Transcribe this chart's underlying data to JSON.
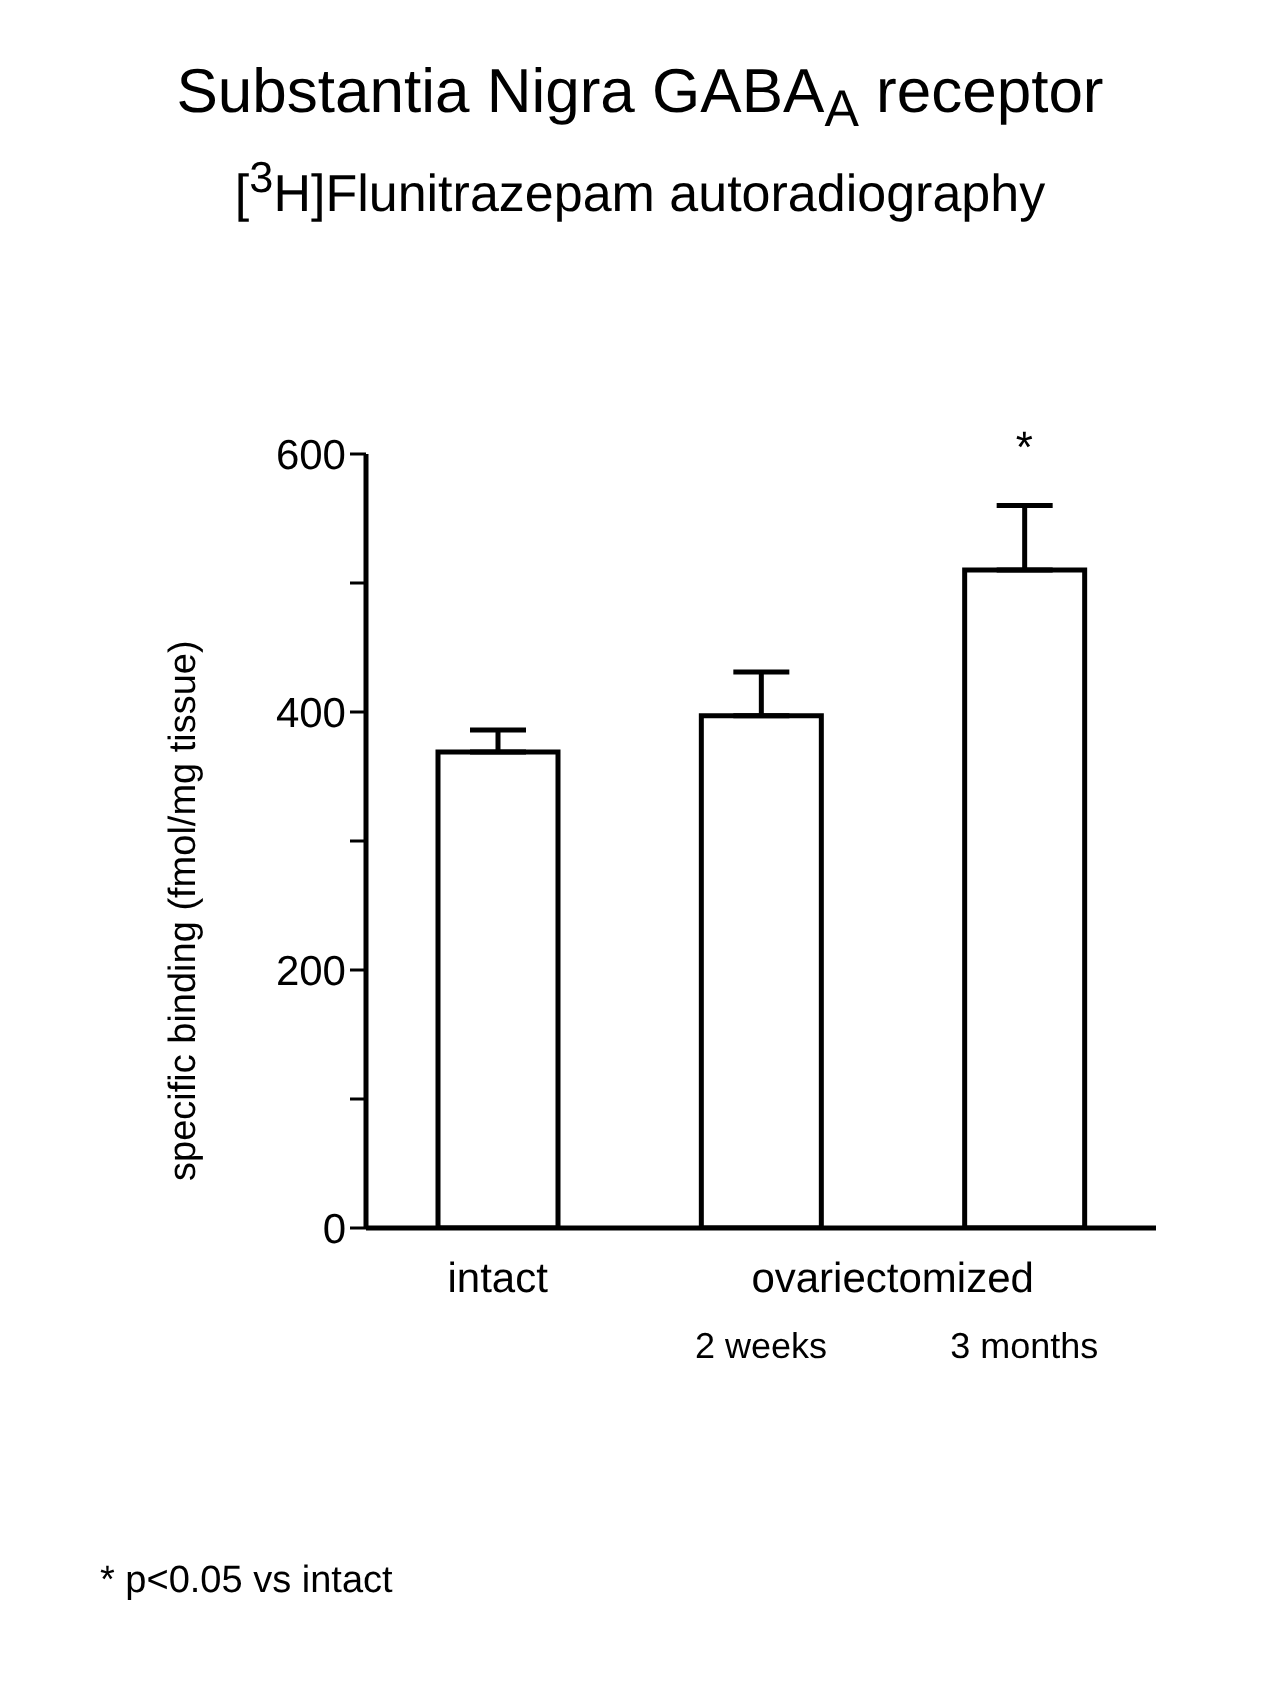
{
  "chart_data": {
    "type": "bar",
    "title": "Substantia Nigra GABA$_{A}$ receptor",
    "subtitle": "[$^{3}$H]Flunitrazepam autoradiography",
    "ylabel": "specific binding (fmol/mg tissue)",
    "categories": [
      "intact",
      "2 weeks",
      "3 months"
    ],
    "values": [
      369,
      397,
      510
    ],
    "errors": [
      [
        369,
        386
      ],
      [
        397,
        431
      ],
      [
        510,
        560
      ]
    ],
    "color": "#ffffff",
    "ylim": [
      0,
      600
    ],
    "yticks": [
      0,
      {
        "value": 100,
        "label": null
      },
      200,
      {
        "value": 300,
        "label": null
      },
      400,
      {
        "value": 500,
        "label": null
      },
      600
    ],
    "grid": false,
    "legend": false,
    "annotations": [
      {
        "text": "*",
        "x": "3 months",
        "y": 560
      },
      "ovariectomized",
      "* p<0.05 vs intact"
    ]
  }
}
